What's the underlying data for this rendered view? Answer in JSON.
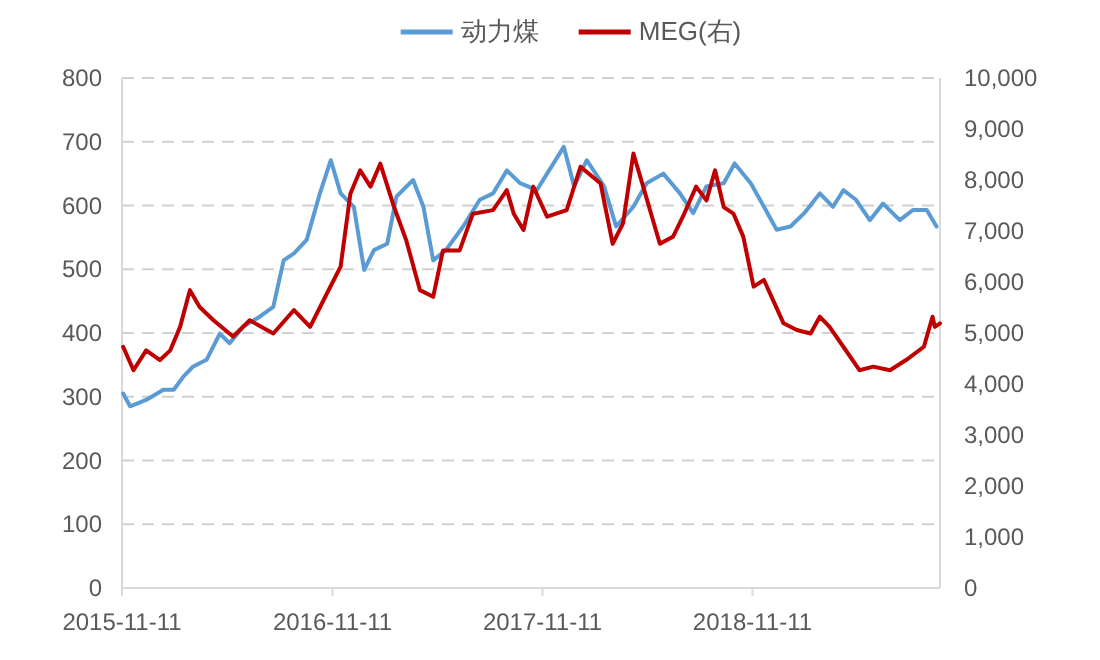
{
  "chart_data": {
    "type": "line",
    "legend": "top",
    "grid": "y",
    "line_style": "solid",
    "xlim": [
      "2015-11-11",
      "2019-10-03"
    ],
    "xticks": [
      "2015-11-11",
      "2016-11-11",
      "2017-11-11",
      "2018-11-11"
    ],
    "ylim": [
      0,
      800
    ],
    "yticks": [
      0,
      100,
      200,
      300,
      400,
      500,
      600,
      700,
      800
    ],
    "y2lim": [
      0,
      10000
    ],
    "y2ticks": [
      0,
      {
        "value": 1000,
        "label": "1,000"
      },
      {
        "value": 2000,
        "label": "2,000"
      },
      {
        "value": 3000,
        "label": "3,000"
      },
      {
        "value": 4000,
        "label": "4,000"
      },
      {
        "value": 5000,
        "label": "5,000"
      },
      {
        "value": 6000,
        "label": "6,000"
      },
      {
        "value": 7000,
        "label": "7,000"
      },
      {
        "value": 8000,
        "label": "8,000"
      },
      {
        "value": 9000,
        "label": "9,000"
      },
      {
        "value": 10000,
        "label": "10,000"
      }
    ],
    "series": [
      {
        "name": "动力煤",
        "color": "#5b9bd5",
        "axis": "y",
        "x": [
          "2015-11-13",
          "2015-11-25",
          "2015-12-23",
          "2016-01-22",
          "2016-02-09",
          "2016-02-26",
          "2016-03-13",
          "2016-04-06",
          "2016-04-29",
          "2016-05-16",
          "2016-06-09",
          "2016-07-08",
          "2016-07-31",
          "2016-08-18",
          "2016-09-05",
          "2016-09-27",
          "2016-10-20",
          "2016-11-08",
          "2016-11-25",
          "2016-12-18",
          "2017-01-05",
          "2017-01-22",
          "2017-02-14",
          "2017-03-02",
          "2017-03-31",
          "2017-04-18",
          "2017-05-05",
          "2017-05-27",
          "2017-06-26",
          "2017-07-25",
          "2017-08-17",
          "2017-09-10",
          "2017-10-03",
          "2017-11-01",
          "2017-11-19",
          "2017-12-18",
          "2018-01-05",
          "2018-01-27",
          "2018-02-26",
          "2018-03-19",
          "2018-04-18",
          "2018-05-11",
          "2018-06-09",
          "2018-07-08",
          "2018-07-31",
          "2018-08-23",
          "2018-09-22",
          "2018-10-11",
          "2018-11-08",
          "2018-12-01",
          "2018-12-23",
          "2019-01-16",
          "2019-02-09",
          "2019-03-08",
          "2019-03-31",
          "2019-04-18",
          "2019-05-10",
          "2019-06-03",
          "2019-06-26",
          "2019-07-25",
          "2019-08-17",
          "2019-09-10",
          "2019-09-27"
        ],
        "values": [
          305,
          285,
          295,
          311,
          311,
          332,
          347,
          358,
          399,
          384,
          410,
          426,
          441,
          514,
          525,
          546,
          619,
          671,
          619,
          598,
          499,
          530,
          540,
          614,
          640,
          598,
          514,
          530,
          567,
          609,
          619,
          655,
          635,
          624,
          650,
          692,
          630,
          671,
          630,
          567,
          598,
          635,
          650,
          619,
          588,
          630,
          635,
          666,
          635,
          598,
          562,
          567,
          588,
          619,
          598,
          624,
          609,
          577,
          603,
          577,
          593,
          593,
          567
        ]
      },
      {
        "name": "MEG(右)",
        "color": "#c00000",
        "axis": "y2",
        "x": [
          "2015-11-13",
          "2015-12-01",
          "2015-12-23",
          "2016-01-16",
          "2016-02-03",
          "2016-02-20",
          "2016-03-08",
          "2016-03-25",
          "2016-04-18",
          "2016-05-22",
          "2016-06-20",
          "2016-07-31",
          "2016-09-05",
          "2016-10-03",
          "2016-11-01",
          "2016-11-25",
          "2016-12-12",
          "2016-12-29",
          "2017-01-16",
          "2017-02-02",
          "2017-02-26",
          "2017-03-19",
          "2017-04-12",
          "2017-05-05",
          "2017-05-22",
          "2017-06-20",
          "2017-07-13",
          "2017-08-17",
          "2017-09-10",
          "2017-09-22",
          "2017-10-09",
          "2017-10-26",
          "2017-11-19",
          "2017-12-23",
          "2018-01-16",
          "2018-02-20",
          "2018-03-13",
          "2018-03-31",
          "2018-04-18",
          "2018-05-05",
          "2018-05-22",
          "2018-06-03",
          "2018-06-26",
          "2018-07-13",
          "2018-08-05",
          "2018-08-23",
          "2018-09-07",
          "2018-09-22",
          "2018-10-09",
          "2018-10-26",
          "2018-11-13",
          "2018-12-01",
          "2018-12-17",
          "2019-01-04",
          "2019-01-27",
          "2019-02-20",
          "2019-03-08",
          "2019-03-25",
          "2019-04-18",
          "2019-05-16",
          "2019-06-09",
          "2019-07-08",
          "2019-08-05",
          "2019-09-05",
          "2019-09-20",
          "2019-09-24",
          "2019-10-03"
        ],
        "values": [
          4730,
          4270,
          4660,
          4470,
          4660,
          5120,
          5840,
          5510,
          5250,
          4930,
          5250,
          4990,
          5450,
          5120,
          5770,
          6300,
          7730,
          8190,
          7870,
          8320,
          7470,
          6820,
          5840,
          5710,
          6620,
          6620,
          7340,
          7410,
          7800,
          7340,
          7020,
          7870,
          7280,
          7410,
          8260,
          7930,
          6750,
          7150,
          8520,
          7870,
          7210,
          6750,
          6890,
          7280,
          7870,
          7600,
          8190,
          7470,
          7340,
          6890,
          5910,
          6040,
          5640,
          5190,
          5060,
          4990,
          5320,
          5120,
          4730,
          4270,
          4340,
          4270,
          4470,
          4730,
          5320,
          5120,
          5190
        ]
      }
    ]
  }
}
